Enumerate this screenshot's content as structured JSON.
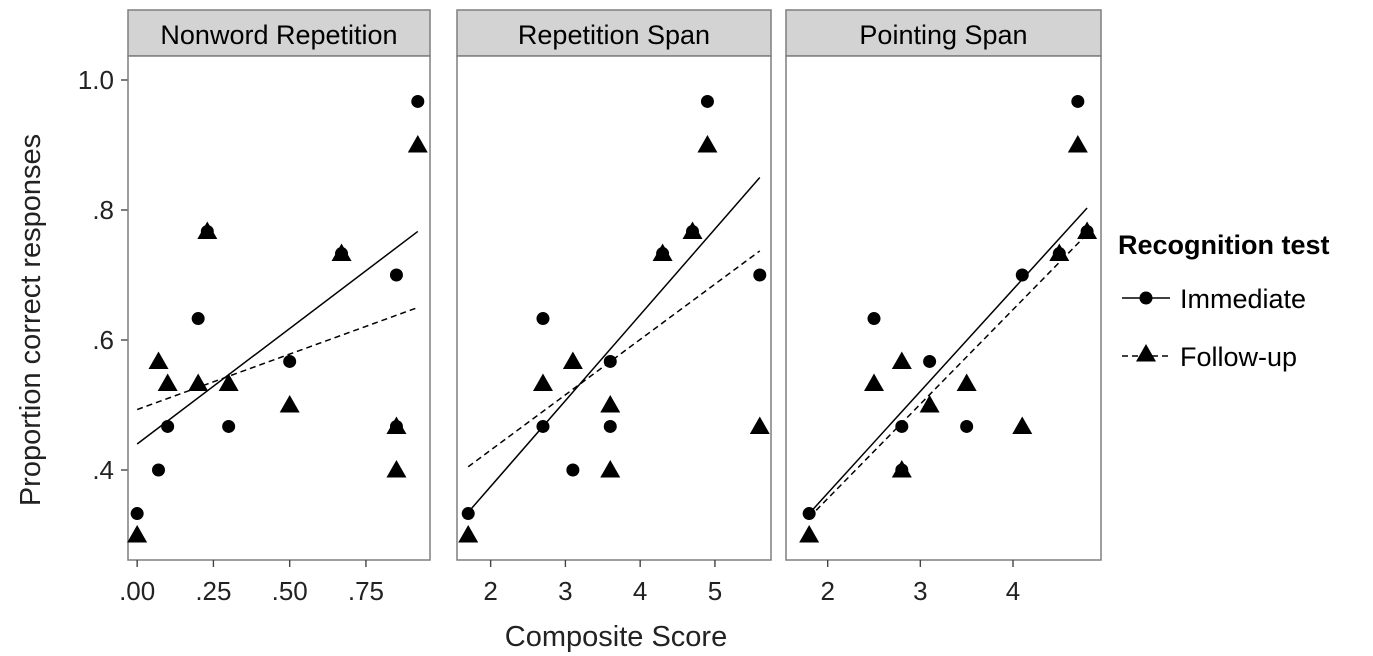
{
  "chart_data": {
    "type": "scatter",
    "xlabel": "Composite Score",
    "ylabel": "Proportion correct responses",
    "legend": {
      "title": "Recognition test",
      "position": "right",
      "entries": [
        {
          "label": "Immediate",
          "marker": "circle",
          "line": "solid"
        },
        {
          "label": "Follow-up",
          "marker": "triangle",
          "line": "dashed"
        }
      ]
    },
    "ylim": [
      0.3,
      1.0
    ],
    "yticks": [
      0.4,
      0.6,
      0.8,
      1.0
    ],
    "ytick_labels": [
      ".4",
      ".6",
      ".8",
      "1.0"
    ],
    "colors": {
      "panel_bg": "#ffffff",
      "strip_bg": "#d3d3d3",
      "border": "#7f7f7f",
      "marker": "#000000"
    },
    "panels": [
      {
        "title": "Nonword Repetition",
        "xlim": [
          -0.03,
          0.96
        ],
        "xticks": [
          0.0,
          0.25,
          0.5,
          0.75
        ],
        "xtick_labels": [
          ".00",
          ".25",
          ".50",
          ".75"
        ],
        "series": [
          {
            "name": "Immediate",
            "points": [
              [
                0.0,
                0.333
              ],
              [
                0.07,
                0.4
              ],
              [
                0.1,
                0.467
              ],
              [
                0.2,
                0.633
              ],
              [
                0.23,
                0.767
              ],
              [
                0.3,
                0.467
              ],
              [
                0.5,
                0.567
              ],
              [
                0.67,
                0.733
              ],
              [
                0.85,
                0.467
              ],
              [
                0.85,
                0.7
              ],
              [
                0.92,
                0.967
              ]
            ],
            "fit": [
              [
                0.0,
                0.44
              ],
              [
                0.92,
                0.767
              ]
            ]
          },
          {
            "name": "Follow-up",
            "points": [
              [
                0.0,
                0.3
              ],
              [
                0.07,
                0.567
              ],
              [
                0.1,
                0.533
              ],
              [
                0.2,
                0.533
              ],
              [
                0.23,
                0.767
              ],
              [
                0.3,
                0.533
              ],
              [
                0.5,
                0.5
              ],
              [
                0.67,
                0.733
              ],
              [
                0.85,
                0.4
              ],
              [
                0.85,
                0.467
              ],
              [
                0.92,
                0.9
              ]
            ],
            "fit": [
              [
                0.0,
                0.493
              ],
              [
                0.92,
                0.65
              ]
            ]
          }
        ]
      },
      {
        "title": "Repetition Span",
        "xlim": [
          1.55,
          5.75
        ],
        "xticks": [
          2,
          3,
          4,
          5
        ],
        "xtick_labels": [
          "2",
          "3",
          "4",
          "5"
        ],
        "series": [
          {
            "name": "Immediate",
            "points": [
              [
                1.7,
                0.333
              ],
              [
                2.7,
                0.467
              ],
              [
                2.7,
                0.633
              ],
              [
                3.1,
                0.4
              ],
              [
                3.6,
                0.567
              ],
              [
                3.6,
                0.467
              ],
              [
                4.3,
                0.733
              ],
              [
                4.7,
                0.767
              ],
              [
                4.9,
                0.967
              ],
              [
                5.6,
                0.7
              ]
            ],
            "fit": [
              [
                1.7,
                0.335
              ],
              [
                5.6,
                0.85
              ]
            ]
          },
          {
            "name": "Follow-up",
            "points": [
              [
                1.7,
                0.3
              ],
              [
                2.7,
                0.533
              ],
              [
                3.1,
                0.567
              ],
              [
                3.6,
                0.5
              ],
              [
                3.6,
                0.4
              ],
              [
                4.3,
                0.733
              ],
              [
                4.7,
                0.767
              ],
              [
                4.9,
                0.9
              ],
              [
                5.6,
                0.467
              ]
            ],
            "fit": [
              [
                1.7,
                0.405
              ],
              [
                5.6,
                0.737
              ]
            ]
          }
        ]
      },
      {
        "title": "Pointing Span",
        "xlim": [
          1.55,
          4.95
        ],
        "xticks": [
          2,
          3,
          4
        ],
        "xtick_labels": [
          "2",
          "3",
          "4"
        ],
        "series": [
          {
            "name": "Immediate",
            "points": [
              [
                1.8,
                0.333
              ],
              [
                2.5,
                0.633
              ],
              [
                2.8,
                0.467
              ],
              [
                2.8,
                0.4
              ],
              [
                3.1,
                0.567
              ],
              [
                3.5,
                0.467
              ],
              [
                4.1,
                0.7
              ],
              [
                4.5,
                0.733
              ],
              [
                4.7,
                0.967
              ],
              [
                4.8,
                0.767
              ]
            ],
            "fit": [
              [
                1.8,
                0.333
              ],
              [
                4.8,
                0.803
              ]
            ]
          },
          {
            "name": "Follow-up",
            "points": [
              [
                1.8,
                0.3
              ],
              [
                2.5,
                0.533
              ],
              [
                2.8,
                0.567
              ],
              [
                2.8,
                0.4
              ],
              [
                3.1,
                0.5
              ],
              [
                3.5,
                0.533
              ],
              [
                4.1,
                0.467
              ],
              [
                4.5,
                0.733
              ],
              [
                4.7,
                0.9
              ],
              [
                4.8,
                0.767
              ]
            ],
            "fit": [
              [
                1.8,
                0.327
              ],
              [
                4.8,
                0.763
              ]
            ]
          }
        ]
      }
    ]
  }
}
